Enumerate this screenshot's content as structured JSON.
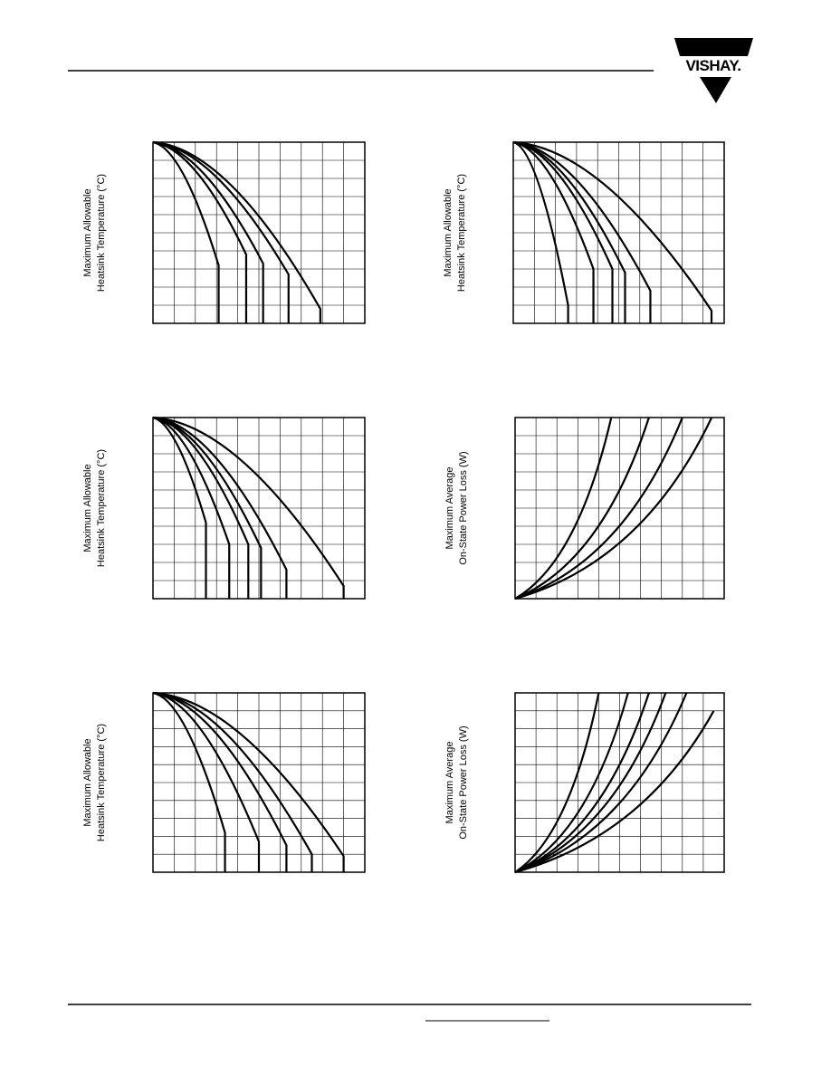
{
  "header": {
    "logo": "VISHAY."
  },
  "charts": [
    {
      "y_label": [
        "Maximum Allowable",
        "Heatsink Temperature (°C)"
      ]
    },
    {
      "y_label": [
        "Maximum Allowable",
        "Heatsink Temperature (°C)"
      ]
    },
    {
      "y_label": [
        "Maximum Allowable",
        "Heatsink Temperature (°C)"
      ]
    },
    {
      "y_label": [
        "Maximum Average",
        "On-State Power Loss (W)"
      ]
    },
    {
      "y_label": [
        "Maximum Allowable",
        "Heatsink Temperature (°C)"
      ]
    },
    {
      "y_label": [
        "Maximum Average",
        "On-State Power Loss (W)"
      ]
    }
  ]
}
